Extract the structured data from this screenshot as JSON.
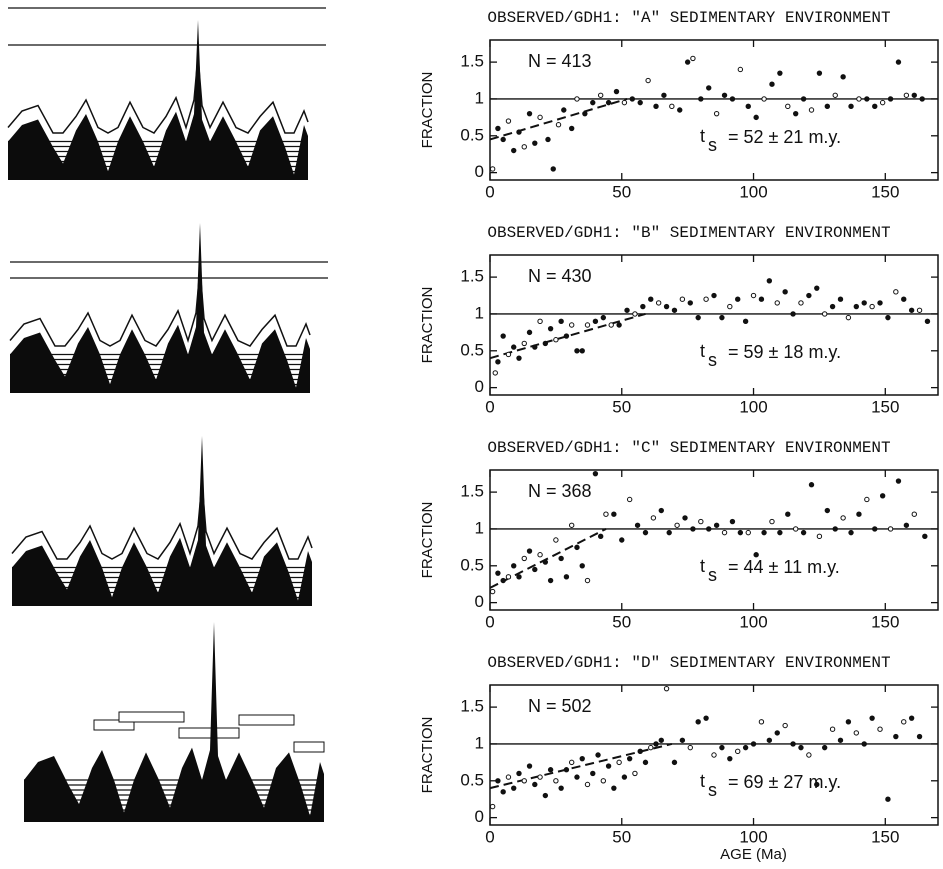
{
  "chart_data": [
    {
      "type": "scatter",
      "title": "OBSERVED/GDH1: \"A\" SEDIMENTARY ENVIRONMENT",
      "y_label": "FRACTION",
      "annotations": [
        "N = 413",
        "t",
        "s",
        "= 52 ± 21 m.y."
      ],
      "xlim": [
        0,
        170
      ],
      "ylim": [
        -0.1,
        1.8
      ],
      "xticks": [
        0,
        50,
        100,
        150
      ],
      "yticks": [
        0,
        0.5,
        1,
        1.5
      ],
      "reference_line": 1,
      "fit": {
        "x": [
          0,
          52
        ],
        "y": [
          0.45,
          1
        ]
      },
      "color": "#111",
      "x": [
        1,
        3,
        5,
        7,
        9,
        11,
        13,
        15,
        17,
        19,
        22,
        24,
        26,
        28,
        31,
        33,
        36,
        39,
        42,
        45,
        48,
        51,
        54,
        57,
        60,
        63,
        66,
        69,
        72,
        75,
        77,
        80,
        83,
        86,
        89,
        92,
        95,
        98,
        101,
        104,
        107,
        110,
        113,
        116,
        119,
        122,
        125,
        128,
        131,
        134,
        137,
        140,
        143,
        146,
        149,
        152,
        155,
        158,
        161,
        164
      ],
      "y": [
        0.05,
        0.6,
        0.45,
        0.7,
        0.3,
        0.55,
        0.35,
        0.8,
        0.4,
        0.75,
        0.45,
        0.05,
        0.65,
        0.85,
        0.6,
        1.0,
        0.8,
        0.95,
        1.05,
        0.95,
        1.1,
        0.95,
        1.0,
        0.95,
        1.25,
        0.9,
        1.05,
        0.9,
        0.85,
        1.5,
        1.55,
        1.0,
        1.15,
        0.8,
        1.05,
        1.0,
        1.4,
        0.9,
        0.75,
        1.0,
        1.2,
        1.35,
        0.9,
        0.8,
        1.0,
        0.85,
        1.35,
        0.9,
        1.05,
        1.3,
        0.9,
        1.0,
        1.0,
        0.9,
        0.95,
        1.0,
        1.5,
        1.05,
        1.05,
        1.0
      ]
    },
    {
      "type": "scatter",
      "title": "OBSERVED/GDH1: \"B\" SEDIMENTARY ENVIRONMENT",
      "y_label": "FRACTION",
      "annotations": [
        "N = 430",
        "t",
        "s",
        "= 59 ± 18 m.y."
      ],
      "xlim": [
        0,
        170
      ],
      "ylim": [
        -0.1,
        1.8
      ],
      "xticks": [
        0,
        50,
        100,
        150
      ],
      "yticks": [
        0,
        0.5,
        1,
        1.5
      ],
      "reference_line": 1,
      "fit": {
        "x": [
          0,
          59
        ],
        "y": [
          0.4,
          1
        ]
      },
      "color": "#111",
      "x": [
        2,
        3,
        5,
        7,
        9,
        11,
        13,
        15,
        17,
        19,
        21,
        23,
        25,
        27,
        29,
        31,
        33,
        35,
        37,
        40,
        43,
        46,
        49,
        52,
        55,
        58,
        61,
        64,
        67,
        70,
        73,
        76,
        79,
        82,
        85,
        88,
        91,
        94,
        97,
        100,
        103,
        106,
        109,
        112,
        115,
        118,
        121,
        124,
        127,
        130,
        133,
        136,
        139,
        142,
        145,
        148,
        151,
        154,
        157,
        160,
        163,
        166
      ],
      "y": [
        0.2,
        0.35,
        0.7,
        0.45,
        0.55,
        0.4,
        0.6,
        0.75,
        0.55,
        0.9,
        0.6,
        0.8,
        0.65,
        0.9,
        0.7,
        0.85,
        0.5,
        0.5,
        0.85,
        0.9,
        0.95,
        0.85,
        0.85,
        1.05,
        1.0,
        1.1,
        1.2,
        1.15,
        1.1,
        1.05,
        1.2,
        1.15,
        0.95,
        1.2,
        1.25,
        0.95,
        1.1,
        1.2,
        0.9,
        1.25,
        1.2,
        1.45,
        1.15,
        1.3,
        1.0,
        1.15,
        1.25,
        1.35,
        1.0,
        1.1,
        1.2,
        0.95,
        1.1,
        1.15,
        1.1,
        1.15,
        0.95,
        1.3,
        1.2,
        1.05,
        1.05,
        0.9
      ]
    },
    {
      "type": "scatter",
      "title": "OBSERVED/GDH1: \"C\" SEDIMENTARY ENVIRONMENT",
      "y_label": "FRACTION",
      "annotations": [
        "N = 368",
        "t",
        "s",
        "= 44 ± 11 m.y."
      ],
      "xlim": [
        0,
        170
      ],
      "ylim": [
        -0.1,
        1.8
      ],
      "xticks": [
        0,
        50,
        100,
        150
      ],
      "yticks": [
        0,
        0.5,
        1,
        1.5
      ],
      "reference_line": 1,
      "fit": {
        "x": [
          0,
          44
        ],
        "y": [
          0.2,
          1
        ]
      },
      "color": "#111",
      "x": [
        1,
        3,
        5,
        7,
        9,
        11,
        13,
        15,
        17,
        19,
        21,
        23,
        25,
        27,
        29,
        31,
        33,
        35,
        37,
        40,
        42,
        44,
        47,
        50,
        53,
        56,
        59,
        62,
        65,
        68,
        71,
        74,
        77,
        80,
        83,
        86,
        89,
        92,
        95,
        98,
        101,
        104,
        107,
        110,
        113,
        116,
        119,
        122,
        125,
        128,
        131,
        134,
        137,
        140,
        143,
        146,
        149,
        152,
        155,
        158,
        161,
        165
      ],
      "y": [
        0.15,
        0.4,
        0.3,
        0.35,
        0.5,
        0.35,
        0.6,
        0.7,
        0.45,
        0.65,
        0.55,
        0.3,
        0.85,
        0.6,
        0.35,
        1.05,
        0.75,
        0.5,
        0.3,
        1.75,
        0.9,
        1.2,
        1.2,
        0.85,
        1.4,
        1.05,
        0.95,
        1.15,
        1.25,
        0.95,
        1.05,
        1.15,
        1.0,
        1.1,
        1.0,
        1.05,
        0.95,
        1.1,
        0.95,
        0.95,
        0.65,
        0.95,
        1.1,
        0.95,
        1.2,
        1.0,
        0.95,
        1.6,
        0.9,
        1.25,
        1.0,
        1.15,
        0.95,
        1.2,
        1.4,
        1.0,
        1.45,
        1.0,
        1.65,
        1.05,
        1.2,
        0.9
      ]
    },
    {
      "type": "scatter",
      "title": "OBSERVED/GDH1: \"D\" SEDIMENTARY ENVIRONMENT",
      "y_label": "FRACTION",
      "x_label": "AGE (Ma)",
      "annotations": [
        "N = 502",
        "t",
        "s",
        "= 69 ± 27 m.y."
      ],
      "xlim": [
        0,
        170
      ],
      "ylim": [
        -0.1,
        1.8
      ],
      "xticks": [
        0,
        50,
        100,
        150
      ],
      "yticks": [
        0,
        0.5,
        1,
        1.5
      ],
      "reference_line": 1,
      "fit": {
        "x": [
          0,
          69
        ],
        "y": [
          0.4,
          1
        ]
      },
      "color": "#111",
      "x": [
        1,
        3,
        5,
        7,
        9,
        11,
        13,
        15,
        17,
        19,
        21,
        23,
        25,
        27,
        29,
        31,
        33,
        35,
        37,
        39,
        41,
        43,
        45,
        47,
        49,
        51,
        53,
        55,
        57,
        59,
        61,
        63,
        65,
        67,
        70,
        73,
        76,
        79,
        82,
        85,
        88,
        91,
        94,
        97,
        100,
        103,
        106,
        109,
        112,
        115,
        118,
        121,
        124,
        127,
        130,
        133,
        136,
        139,
        142,
        145,
        148,
        151,
        154,
        157,
        160,
        163
      ],
      "y": [
        0.15,
        0.5,
        0.35,
        0.55,
        0.4,
        0.6,
        0.5,
        0.7,
        0.45,
        0.55,
        0.3,
        0.65,
        0.5,
        0.4,
        0.65,
        0.75,
        0.55,
        0.8,
        0.45,
        0.6,
        0.85,
        0.5,
        0.7,
        0.4,
        0.75,
        0.55,
        0.8,
        0.6,
        0.9,
        0.75,
        0.95,
        1.0,
        1.05,
        1.75,
        0.75,
        1.05,
        0.95,
        1.3,
        1.35,
        0.85,
        0.95,
        0.8,
        0.9,
        0.95,
        1.0,
        1.3,
        1.05,
        1.15,
        1.25,
        1.0,
        0.95,
        0.85,
        0.45,
        0.95,
        1.2,
        1.05,
        1.3,
        1.15,
        1.0,
        1.35,
        1.2,
        0.25,
        1.1,
        1.3,
        1.35,
        1.1
      ]
    }
  ]
}
